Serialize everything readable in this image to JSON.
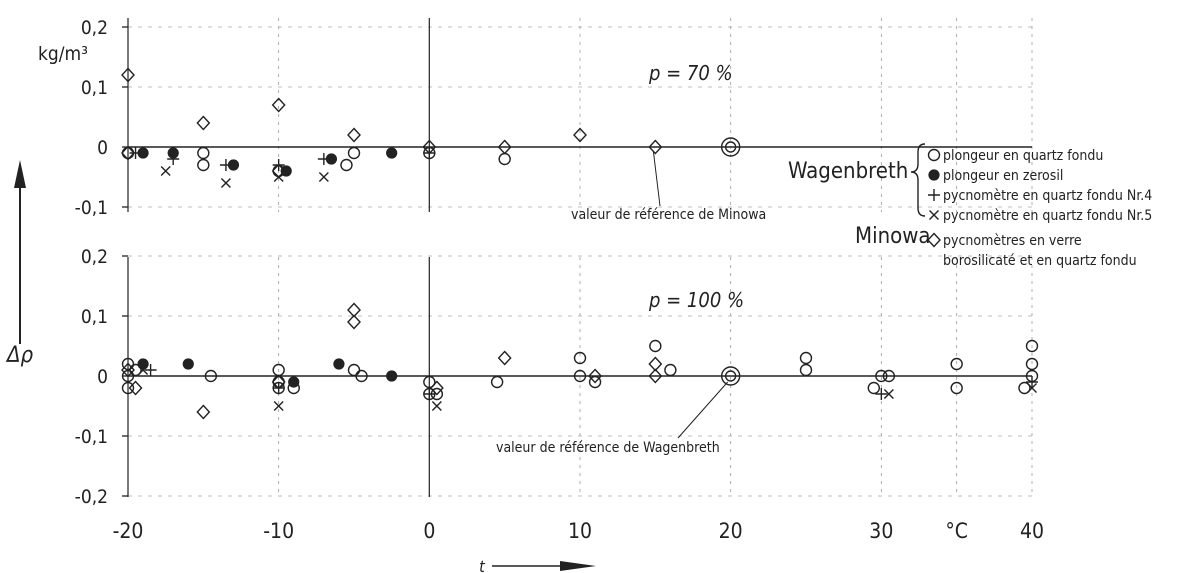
{
  "figure": {
    "axis_unit": "kg/m³",
    "y_axis_label": "Δρ",
    "x_axis_label": "t",
    "x_unit_tick": "°C",
    "legend": {
      "group_wagenbreth": "Wagenbreth",
      "group_minowa": "Minowa",
      "entries": [
        {
          "symbol": "open-circle",
          "label": "plongeur en quartz fondu"
        },
        {
          "symbol": "filled-circle",
          "label": "plongeur en zerosil"
        },
        {
          "symbol": "plus",
          "label": "pycnomètre en quartz fondu Nr.4"
        },
        {
          "symbol": "cross",
          "label": "pycnomètre en quartz fondu Nr.5"
        },
        {
          "symbol": "diamond",
          "label_line1": "pycnomètres en verre",
          "label_line2": "borosilicaté et en quartz fondu"
        }
      ]
    }
  },
  "chart_data": [
    {
      "type": "scatter",
      "panel": "top",
      "title": "p = 70 %",
      "ylabel": "Δρ",
      "yunit": "kg/m³",
      "xlim": [
        -20,
        40
      ],
      "ylim": [
        -0.1,
        0.2
      ],
      "y_ticks": [
        "0,2",
        "0,1",
        "0",
        "-0,1"
      ],
      "y_tick_values": [
        0.2,
        0.1,
        0,
        -0.1
      ],
      "annotation": "valeur de référence de Minowa",
      "reference_point": {
        "x": 20,
        "y": 0
      },
      "series": [
        {
          "name": "plongeur en quartz fondu",
          "symbol": "open-circle",
          "points": [
            [
              -20,
              -0.01
            ],
            [
              -15,
              -0.01
            ],
            [
              -15,
              -0.03
            ],
            [
              -10,
              -0.04
            ],
            [
              -5.5,
              -0.03
            ],
            [
              -5,
              -0.01
            ],
            [
              0,
              -0.01
            ],
            [
              5,
              -0.02
            ]
          ]
        },
        {
          "name": "plongeur en zerosil",
          "symbol": "filled-circle",
          "points": [
            [
              -19,
              -0.01
            ],
            [
              -17,
              -0.01
            ],
            [
              -13,
              -0.03
            ],
            [
              -9.5,
              -0.04
            ],
            [
              -6.5,
              -0.02
            ],
            [
              -2.5,
              -0.01
            ]
          ]
        },
        {
          "name": "pycnomètre en quartz fondu Nr.4",
          "symbol": "plus",
          "points": [
            [
              -19.5,
              -0.01
            ],
            [
              -17,
              -0.02
            ],
            [
              -13.5,
              -0.03
            ],
            [
              -10,
              -0.03
            ],
            [
              -7,
              -0.02
            ],
            [
              0,
              -0.01
            ]
          ]
        },
        {
          "name": "pycnomètre en quartz fondu Nr.5",
          "symbol": "cross",
          "points": [
            [
              -17.5,
              -0.04
            ],
            [
              -13.5,
              -0.06
            ],
            [
              -10,
              -0.05
            ],
            [
              -7,
              -0.05
            ]
          ]
        },
        {
          "name": "pycnomètres en verre borosilicaté et en quartz fondu",
          "symbol": "diamond",
          "points": [
            [
              -20,
              0.12
            ],
            [
              -20,
              -0.01
            ],
            [
              -15,
              0.04
            ],
            [
              -10,
              0.07
            ],
            [
              -10,
              -0.04
            ],
            [
              -5,
              0.02
            ],
            [
              0,
              0
            ],
            [
              5,
              0
            ],
            [
              10,
              0.02
            ],
            [
              15,
              0
            ]
          ]
        }
      ]
    },
    {
      "type": "scatter",
      "panel": "bottom",
      "title": "p = 100 %",
      "ylabel": "Δρ",
      "yunit": "kg/m³",
      "xlabel": "t",
      "xunit": "°C",
      "xlim": [
        -20,
        40
      ],
      "ylim": [
        -0.2,
        0.2
      ],
      "x_ticks": [
        "-20",
        "-10",
        "0",
        "10",
        "20",
        "30",
        "°C",
        "40"
      ],
      "x_tick_values": [
        -20,
        -10,
        0,
        10,
        20,
        30,
        35,
        40
      ],
      "y_ticks": [
        "0,2",
        "0,1",
        "0",
        "-0,1",
        "-0,2"
      ],
      "y_tick_values": [
        0.2,
        0.1,
        0,
        -0.1,
        -0.2
      ],
      "annotation": "valeur de référence de Wagenbreth",
      "reference_point": {
        "x": 20,
        "y": 0
      },
      "series": [
        {
          "name": "plongeur en quartz fondu",
          "symbol": "open-circle",
          "points": [
            [
              -20,
              0.02
            ],
            [
              -20,
              0
            ],
            [
              -20,
              -0.02
            ],
            [
              -19.5,
              0.01
            ],
            [
              -14.5,
              0
            ],
            [
              -10,
              0.01
            ],
            [
              -10,
              -0.01
            ],
            [
              -10,
              -0.02
            ],
            [
              -9,
              -0.02
            ],
            [
              -5,
              0.01
            ],
            [
              -4.5,
              0
            ],
            [
              0,
              -0.01
            ],
            [
              0,
              -0.03
            ],
            [
              0.5,
              -0.03
            ],
            [
              4.5,
              -0.01
            ],
            [
              10,
              0.03
            ],
            [
              10,
              0
            ],
            [
              11,
              -0.01
            ],
            [
              15,
              0.05
            ],
            [
              16,
              0.01
            ],
            [
              25,
              0.03
            ],
            [
              25,
              0.01
            ],
            [
              29.5,
              -0.02
            ],
            [
              30,
              0
            ],
            [
              30.5,
              0
            ],
            [
              35,
              0.02
            ],
            [
              35,
              -0.02
            ],
            [
              39.5,
              -0.02
            ],
            [
              40,
              0.05
            ],
            [
              40,
              0.02
            ],
            [
              40,
              0
            ]
          ]
        },
        {
          "name": "plongeur en zerosil",
          "symbol": "filled-circle",
          "points": [
            [
              -19,
              0.02
            ],
            [
              -16,
              0.02
            ],
            [
              -9,
              -0.01
            ],
            [
              -6,
              0.02
            ],
            [
              -2.5,
              0
            ]
          ]
        },
        {
          "name": "pycnomètre en quartz fondu Nr.4",
          "symbol": "plus",
          "points": [
            [
              -18.5,
              0.01
            ],
            [
              -10,
              -0.02
            ],
            [
              0,
              -0.03
            ],
            [
              30,
              -0.03
            ],
            [
              40,
              -0.01
            ]
          ]
        },
        {
          "name": "pycnomètre en quartz fondu Nr.5",
          "symbol": "cross",
          "points": [
            [
              -19,
              0.01
            ],
            [
              -10,
              -0.05
            ],
            [
              0.5,
              -0.05
            ],
            [
              30.5,
              -0.03
            ],
            [
              40,
              -0.02
            ]
          ]
        },
        {
          "name": "pycnomètres en verre borosilicaté et en quartz fondu",
          "symbol": "diamond",
          "points": [
            [
              -20,
              0.01
            ],
            [
              -19.5,
              -0.02
            ],
            [
              -15,
              -0.06
            ],
            [
              -10,
              -0.01
            ],
            [
              -5,
              0.11
            ],
            [
              -5,
              0.09
            ],
            [
              0.5,
              -0.02
            ],
            [
              5,
              0.03
            ],
            [
              11,
              0
            ],
            [
              15,
              0.02
            ],
            [
              15,
              0
            ]
          ]
        }
      ]
    }
  ]
}
